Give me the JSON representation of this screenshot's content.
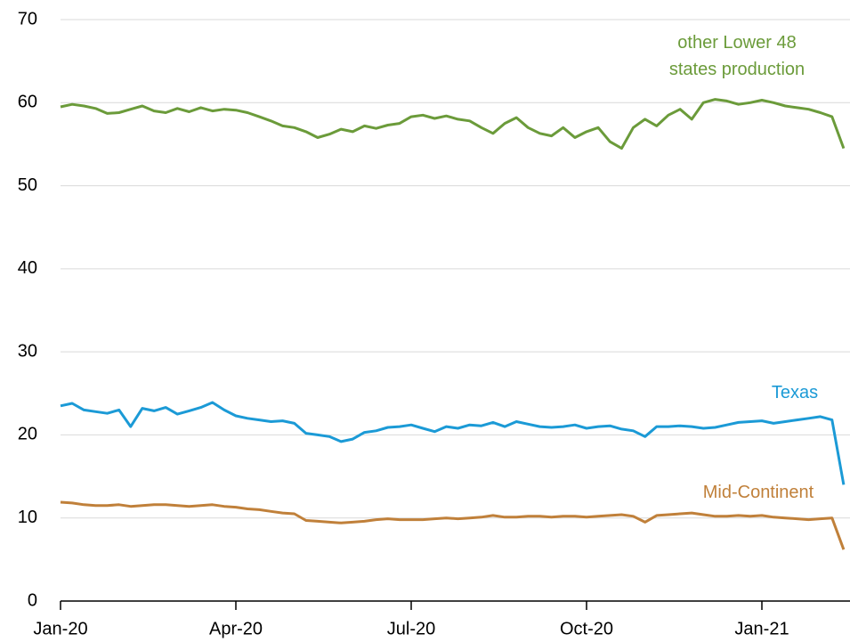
{
  "chart_data": {
    "type": "line",
    "categories": [
      "Jan-20",
      null,
      null,
      null,
      null,
      null,
      null,
      null,
      null,
      null,
      null,
      null,
      null,
      null,
      null,
      "Apr-20",
      null,
      null,
      null,
      null,
      null,
      null,
      null,
      null,
      null,
      null,
      null,
      null,
      null,
      null,
      "Jul-20",
      null,
      null,
      null,
      null,
      null,
      null,
      null,
      null,
      null,
      null,
      null,
      null,
      null,
      null,
      "Oct-20",
      null,
      null,
      null,
      null,
      null,
      null,
      null,
      null,
      null,
      null,
      null,
      null,
      null,
      null,
      "Jan-21",
      null,
      null,
      null,
      null,
      null,
      null,
      null
    ],
    "series": [
      {
        "name": "other Lower 48 states production",
        "color": "#6b9b3a",
        "values": [
          59.5,
          59.8,
          59.6,
          59.3,
          58.7,
          58.8,
          59.2,
          59.6,
          59.0,
          58.8,
          59.3,
          58.9,
          59.4,
          59.0,
          59.2,
          59.1,
          58.8,
          58.3,
          57.8,
          57.2,
          57.0,
          56.5,
          55.8,
          56.2,
          56.8,
          56.5,
          57.2,
          56.9,
          57.3,
          57.5,
          58.3,
          58.5,
          58.1,
          58.4,
          58.0,
          57.8,
          57.0,
          56.3,
          57.5,
          58.2,
          57.0,
          56.3,
          56.0,
          57.0,
          55.8,
          56.5,
          57.0,
          55.3,
          54.5,
          57.0,
          58.0,
          57.2,
          58.5,
          59.2,
          58.0,
          60.0,
          60.4,
          60.2,
          59.8,
          60.0,
          60.3,
          60.0,
          59.6,
          59.4,
          59.2,
          58.8,
          58.3,
          54.5
        ]
      },
      {
        "name": "Texas",
        "color": "#1b9ad6",
        "values": [
          23.5,
          23.8,
          23.0,
          22.8,
          22.6,
          23.0,
          21.0,
          23.2,
          22.9,
          23.3,
          22.5,
          22.9,
          23.3,
          23.9,
          23.0,
          22.3,
          22.0,
          21.8,
          21.6,
          21.7,
          21.4,
          20.2,
          20.0,
          19.8,
          19.2,
          19.5,
          20.3,
          20.5,
          20.9,
          21.0,
          21.2,
          20.8,
          20.4,
          21.0,
          20.8,
          21.2,
          21.1,
          21.5,
          21.0,
          21.6,
          21.3,
          21.0,
          20.9,
          21.0,
          21.2,
          20.8,
          21.0,
          21.1,
          20.7,
          20.5,
          19.8,
          21.0,
          21.0,
          21.1,
          21.0,
          20.8,
          20.9,
          21.2,
          21.5,
          21.6,
          21.7,
          21.4,
          21.6,
          21.8,
          22.0,
          22.2,
          21.8,
          14.0
        ]
      },
      {
        "name": "Mid-Continent",
        "color": "#c0803a",
        "values": [
          11.9,
          11.8,
          11.6,
          11.5,
          11.5,
          11.6,
          11.4,
          11.5,
          11.6,
          11.6,
          11.5,
          11.4,
          11.5,
          11.6,
          11.4,
          11.3,
          11.1,
          11.0,
          10.8,
          10.6,
          10.5,
          9.7,
          9.6,
          9.5,
          9.4,
          9.5,
          9.6,
          9.8,
          9.9,
          9.8,
          9.8,
          9.8,
          9.9,
          10.0,
          9.9,
          10.0,
          10.1,
          10.3,
          10.1,
          10.1,
          10.2,
          10.2,
          10.1,
          10.2,
          10.2,
          10.1,
          10.2,
          10.3,
          10.4,
          10.2,
          9.5,
          10.3,
          10.4,
          10.5,
          10.6,
          10.4,
          10.2,
          10.2,
          10.3,
          10.2,
          10.3,
          10.1,
          10.0,
          9.9,
          9.8,
          9.9,
          10.0,
          6.2
        ]
      }
    ],
    "ylim": [
      0,
      70
    ],
    "yticks": [
      0,
      10,
      20,
      30,
      40,
      50,
      60,
      70
    ],
    "grid": true
  }
}
